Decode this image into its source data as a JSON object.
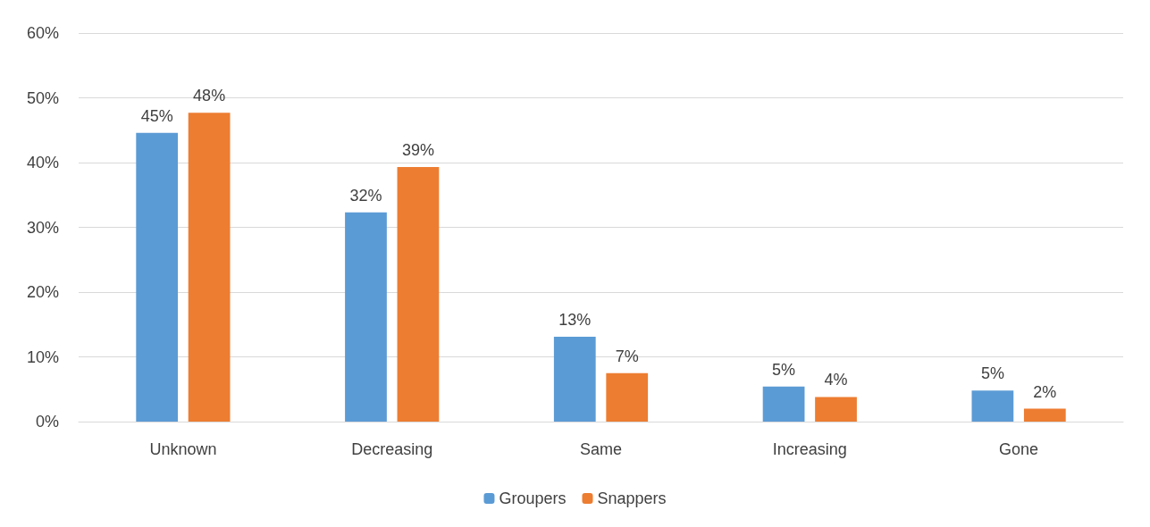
{
  "chart_data": {
    "type": "bar",
    "categories": [
      "Unknown",
      "Decreasing",
      "Same",
      "Increasing",
      "Gone"
    ],
    "series": [
      {
        "name": "Groupers",
        "color": "#5b9bd5",
        "values": [
          44.6,
          32.3,
          13.1,
          5.4,
          4.8
        ],
        "value_labels": [
          "45%",
          "32%",
          "13%",
          "5%",
          "5%"
        ]
      },
      {
        "name": "Snappers",
        "color": "#ed7d31",
        "values": [
          47.7,
          39.3,
          7.5,
          3.8,
          2.0
        ],
        "value_labels": [
          "48%",
          "39%",
          "7%",
          "4%",
          "2%"
        ]
      }
    ],
    "ylim": [
      0,
      60
    ],
    "yticks": [
      {
        "value": 0,
        "label": "0%"
      },
      {
        "value": 10,
        "label": "10%"
      },
      {
        "value": 20,
        "label": "20%"
      },
      {
        "value": 30,
        "label": "30%"
      },
      {
        "value": 40,
        "label": "40%"
      },
      {
        "value": 50,
        "label": "50%"
      },
      {
        "value": 60,
        "label": "60%"
      }
    ],
    "grid": "y",
    "legend": "bottom"
  }
}
